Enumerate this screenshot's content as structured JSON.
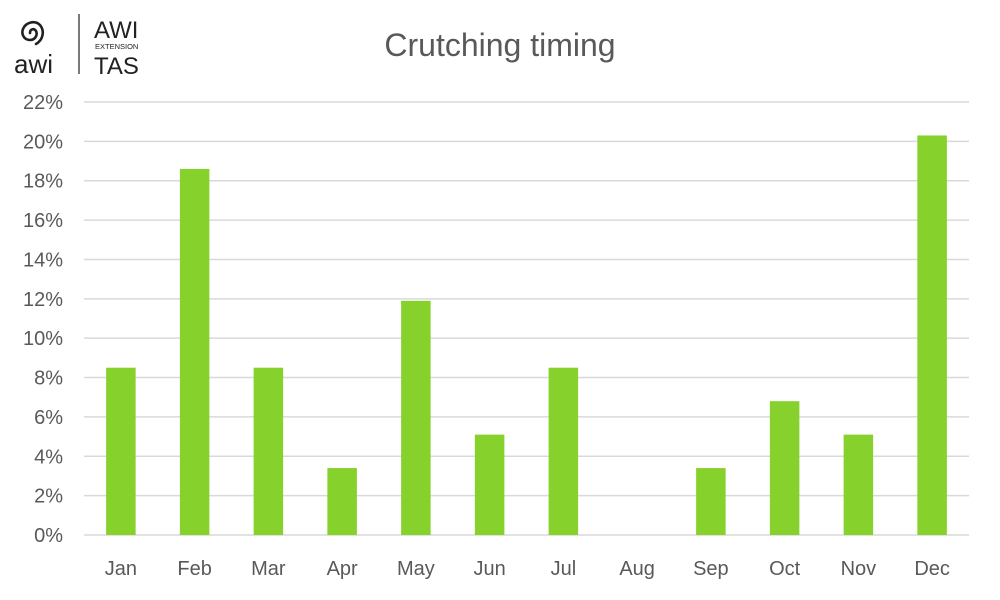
{
  "logo": {
    "brand": "awi",
    "line1": "AWI",
    "line2": "EXTENSION",
    "line3": "TAS",
    "icon": "spiral-icon",
    "color": "#222222"
  },
  "chart_data": {
    "type": "bar",
    "title": "Crutching timing",
    "xlabel": "",
    "ylabel": "",
    "categories": [
      "Jan",
      "Feb",
      "Mar",
      "Apr",
      "May",
      "Jun",
      "Jul",
      "Aug",
      "Sep",
      "Oct",
      "Nov",
      "Dec"
    ],
    "values": [
      8.5,
      18.6,
      8.5,
      3.4,
      11.9,
      5.1,
      8.5,
      0,
      3.4,
      6.8,
      5.1,
      20.3
    ],
    "ylim": [
      0,
      22
    ],
    "ytick_step": 2,
    "ytick_labels": [
      "0%",
      "2%",
      "4%",
      "6%",
      "8%",
      "10%",
      "12%",
      "14%",
      "16%",
      "18%",
      "20%",
      "22%"
    ],
    "grid": true,
    "legend": "none",
    "bar_color": "#86d12b",
    "grid_color": "#d9d9d9"
  }
}
